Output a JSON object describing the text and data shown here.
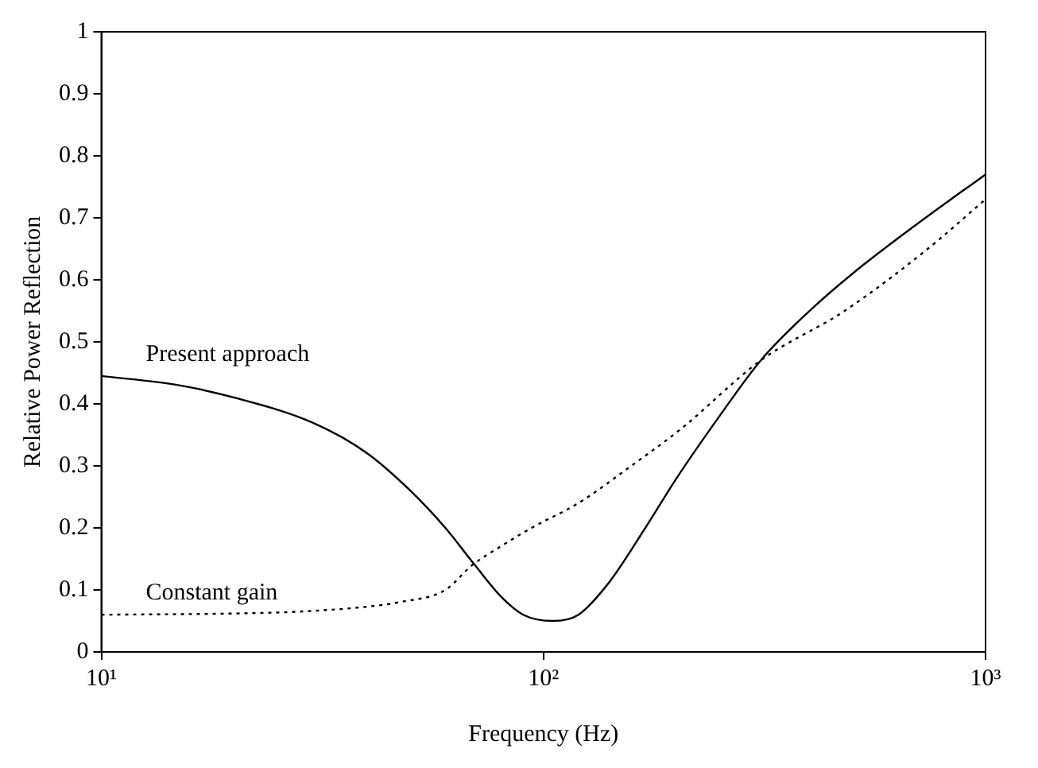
{
  "chart_data": {
    "type": "line",
    "xlabel": "Frequency (Hz)",
    "ylabel": "Relative Power Reflection",
    "log": "x",
    "xlim": [
      10,
      1000
    ],
    "xticks": [
      {
        "value": 10,
        "label": "10¹"
      },
      {
        "value": 100,
        "label": "10²"
      },
      {
        "value": 1000,
        "label": "10³"
      }
    ],
    "ylim": [
      0,
      1
    ],
    "yticks": [
      0,
      0.1,
      0.2,
      0.3,
      0.4,
      0.5,
      0.6,
      0.7,
      0.8,
      0.9,
      1
    ],
    "grid": false,
    "legend": false,
    "marker": "none",
    "series": [
      {
        "name": "Present approach",
        "color": "#000000",
        "line_style": "solid",
        "x": [
          10,
          15,
          20,
          30,
          40,
          50,
          60,
          70,
          80,
          90,
          105,
          120,
          140,
          170,
          200,
          250,
          310,
          400,
          500,
          700,
          1000
        ],
        "values": [
          0.445,
          0.43,
          0.41,
          0.37,
          0.32,
          0.26,
          0.2,
          0.14,
          0.09,
          0.06,
          0.05,
          0.06,
          0.11,
          0.2,
          0.28,
          0.38,
          0.47,
          0.55,
          0.61,
          0.69,
          0.77
        ]
      },
      {
        "name": "Constant gain",
        "color": "#000000",
        "line_style": "dotted",
        "x": [
          10,
          20,
          28,
          40,
          47,
          60,
          69,
          80,
          94,
          120,
          158,
          205,
          310,
          480,
          740,
          1000
        ],
        "values": [
          0.06,
          0.062,
          0.065,
          0.073,
          0.08,
          0.1,
          0.14,
          0.17,
          0.2,
          0.24,
          0.3,
          0.36,
          0.47,
          0.55,
          0.65,
          0.73
        ]
      }
    ]
  }
}
